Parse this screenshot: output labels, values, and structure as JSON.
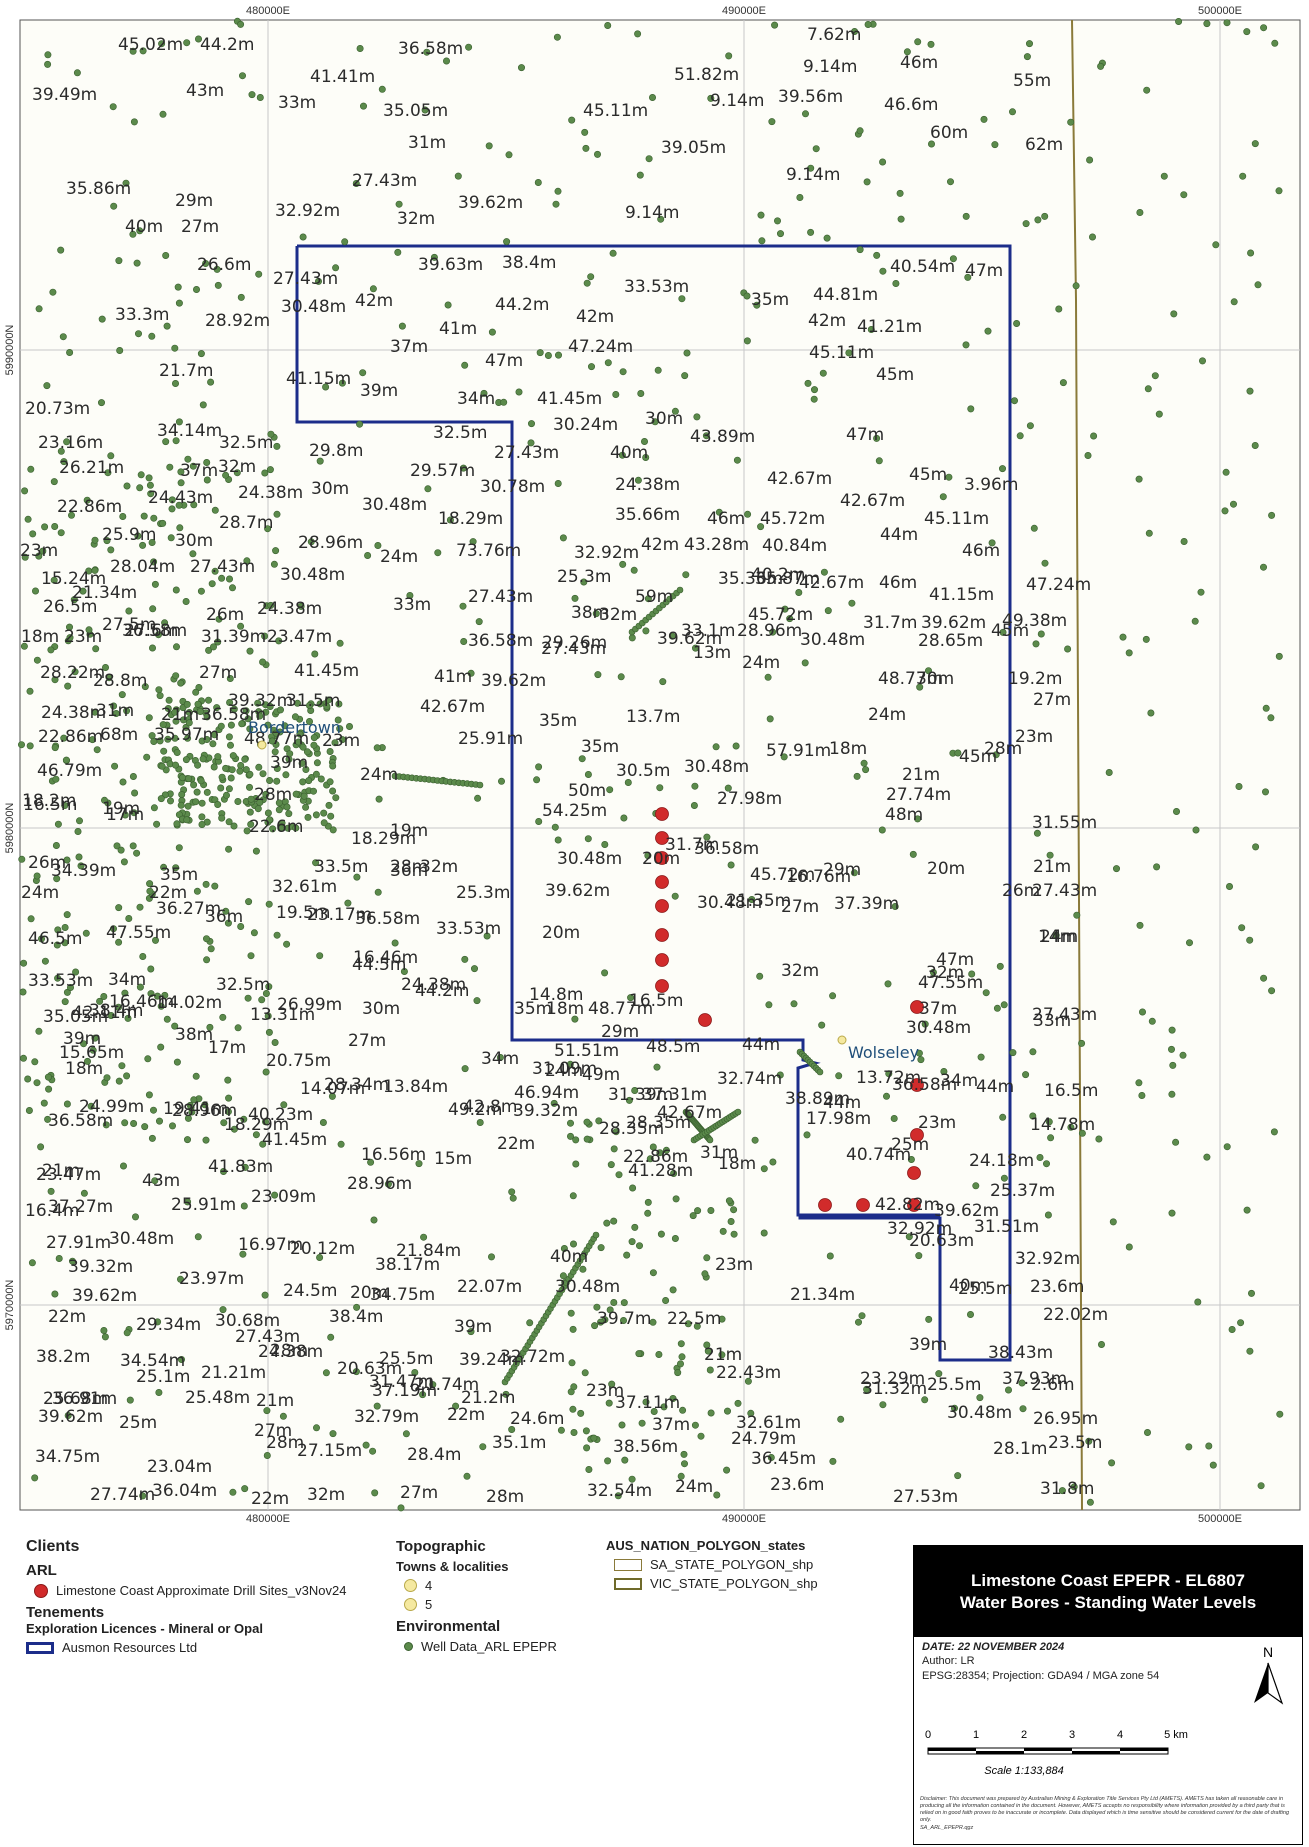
{
  "map": {
    "grid_labels": {
      "top": [
        "480000E",
        "490000E",
        "500000E"
      ],
      "bottom": [
        "480000E",
        "490000E",
        "500000E"
      ],
      "left": [
        "5990000N",
        "5980000N",
        "5970000N"
      ]
    },
    "towns": [
      {
        "name": "Bordertown"
      },
      {
        "name": "Wolseley"
      }
    ],
    "well_labels": [
      "45.02m",
      "44.2m",
      "36.58m",
      "7.62m",
      "39.49m",
      "43m",
      "41.41m",
      "51.82m",
      "9.14m",
      "46m",
      "55m",
      "33m",
      "35.05m",
      "45.11m",
      "9.14m",
      "39.56m",
      "46.6m",
      "31m",
      "39.05m",
      "60m",
      "62m",
      "35.86m",
      "27.43m",
      "9.14m",
      "29m",
      "32.92m",
      "32m",
      "39.62m",
      "9.14m",
      "40m",
      "27m",
      "26.6m",
      "39.63m",
      "38.4m",
      "40.54m",
      "47m",
      "27.43m",
      "33.53m",
      "30.48m",
      "42m",
      "44.2m",
      "35m",
      "44.81m",
      "33.3m",
      "28.92m",
      "42m",
      "42m",
      "41.21m",
      "41m",
      "47.24m",
      "37m",
      "45.11m",
      "21.7m",
      "47m",
      "45m",
      "41.15m",
      "39m",
      "34m",
      "41.45m",
      "20.73m",
      "30.24m",
      "30m",
      "43.89m",
      "23.16m",
      "34.14m",
      "32.5m",
      "32.5m",
      "27.43m",
      "47m",
      "29.8m",
      "40m",
      "26.21m",
      "37m",
      "32m",
      "29.57m",
      "45m",
      "30.78m",
      "24.38m",
      "42.67m",
      "3.96m",
      "30m",
      "24.43m",
      "24.38m",
      "42.67m",
      "22.86m",
      "30.48m",
      "18.29m",
      "35.66m",
      "46m",
      "45.72m",
      "45.11m",
      "28.7m",
      "25.9m",
      "30m",
      "28.96m",
      "73.76m",
      "32.92m",
      "42m",
      "43.28m",
      "40.84m",
      "44m",
      "46m",
      "23m",
      "28.04m",
      "24m",
      "27.43m",
      "15.24m",
      "30.48m",
      "40.2m",
      "42.67m",
      "46m",
      "47.24m",
      "21.34m",
      "25.3m",
      "41.15m",
      "26.5m",
      "26m",
      "24.38m",
      "33m",
      "27.43m",
      "38m",
      "59m",
      "45.72m",
      "49.38m",
      "32m",
      "31.7m",
      "39.62m",
      "18m",
      "23m",
      "27.5m",
      "27.6m",
      "31.39m",
      "23.47m",
      "36.58m",
      "29.26m",
      "33.1m",
      "28.96m",
      "30.48m",
      "28.65m",
      "45m",
      "36.58m",
      "27.43m",
      "39.62m",
      "13m",
      "24m",
      "28.22m",
      "28.8m",
      "27m",
      "41.45m",
      "41m",
      "39.62m",
      "48.77m",
      "30m",
      "19.2m",
      "24.38m",
      "31m",
      "39.32m",
      "21m",
      "31.5m",
      "42.67m",
      "35m",
      "13.7m",
      "24m",
      "27m",
      "23m",
      "22.86m",
      "35.97m",
      "36.58m",
      "68m",
      "48.77m",
      "25.91m",
      "35m",
      "57.91m",
      "18m",
      "28m",
      "46.79m",
      "39m",
      "23m",
      "24m",
      "50m",
      "30.5m",
      "30.48m",
      "21m",
      "45m",
      "16.5m",
      "19m",
      "28m",
      "54.25m",
      "27.98m",
      "27.74m",
      "48m",
      "31.55m",
      "18.2m",
      "17m",
      "22.6m",
      "19m",
      "18.29m",
      "28m",
      "32m",
      "31.7m",
      "36.58m",
      "29m",
      "30.48m",
      "20m",
      "20m",
      "26m",
      "34.39m",
      "35m",
      "33.5m",
      "36m",
      "45.72m",
      "16.76m",
      "21m",
      "24m",
      "22m",
      "32.61m",
      "25.3m",
      "39.62m",
      "30.48m",
      "27m",
      "27.43m",
      "36.27m",
      "36m",
      "23.17m",
      "26m",
      "21.35m",
      "37.39m",
      "46.5m",
      "36.58m",
      "33.53m",
      "32m",
      "47.55m",
      "19.5m",
      "16.46m",
      "24.38m",
      "44.2m",
      "47m",
      "20m",
      "32m",
      "24m",
      "32.5m",
      "34m",
      "44.5m",
      "14m",
      "33.53m",
      "16.46m",
      "26.99m",
      "30m",
      "35m",
      "48.77m",
      "37m",
      "27.43m",
      "38.4m",
      "14.02m",
      "18m",
      "16.5m",
      "47.55m",
      "35.05m",
      "42.11m",
      "38m",
      "13.31m",
      "14.8m",
      "29m",
      "30.48m",
      "33m",
      "48.5m",
      "51.51m",
      "24m",
      "44m",
      "39m",
      "15.65m",
      "17m",
      "27m",
      "34m",
      "31.09m",
      "49m",
      "37.31m",
      "13.72m",
      "18m",
      "20.75m",
      "28.34m",
      "46.94m",
      "31.39m",
      "34m",
      "36.58m",
      "19.41m",
      "14.07m",
      "13.84m",
      "49.2m",
      "28.35m",
      "32.74m",
      "44m",
      "36.58m",
      "44m",
      "17.98m",
      "16.5m",
      "14.78m",
      "24.99m",
      "28.96m",
      "18.29m",
      "42.8m",
      "39.32m",
      "28.35m",
      "42.67m",
      "38.89m",
      "23m",
      "23.47m",
      "21m",
      "40.23m",
      "41.45m",
      "16.56m",
      "15m",
      "22m",
      "22.86m",
      "31m",
      "40.74m",
      "25m",
      "24.18m",
      "16.4m",
      "37.27m",
      "43m",
      "41.83m",
      "25.91m",
      "23.09m",
      "28.96m",
      "41.28m",
      "18m",
      "42.82m",
      "25.37m",
      "39.62m",
      "27.91m",
      "30.48m",
      "16.97m",
      "20.12m",
      "21.84m",
      "38.17m",
      "40m",
      "23m",
      "20.63m",
      "32.92m",
      "31.51m",
      "39.32m",
      "39.62m",
      "23.97m",
      "24.5m",
      "20m",
      "22.07m",
      "30.48m",
      "21.34m",
      "32.92m",
      "40m",
      "23.6m",
      "22m",
      "29.34m",
      "30.68m",
      "38.4m",
      "34.75m",
      "39m",
      "39.7m",
      "22.5m",
      "25.5m",
      "22.02m",
      "38.2m",
      "34.54m",
      "27.43m",
      "28m",
      "24.38m",
      "25.5m",
      "32.72m",
      "39.24m",
      "21m",
      "39m",
      "38.43m",
      "25.68m",
      "25.1m",
      "21.21m",
      "20.63m",
      "31.47m",
      "21.74m",
      "23m",
      "23.29m",
      "25.5m",
      "37.93m",
      "36.91m",
      "25.48m",
      "21m",
      "37.19m",
      "21.2m",
      "22.43m",
      "31.32m",
      "2.6m",
      "39.62m",
      "25m",
      "27m",
      "32.79m",
      "22m",
      "24.6m",
      "37.11m",
      "37m",
      "32.61m",
      "30.48m",
      "26.95m",
      "34.75m",
      "23.04m",
      "28m",
      "27.15m",
      "28.4m",
      "35.1m",
      "38.56m",
      "24.79m",
      "36.45m",
      "28.1m",
      "23.5m",
      "27.74m",
      "36.04m",
      "22m",
      "32m",
      "27m",
      "28m",
      "32.54m",
      "24m",
      "23.6m",
      "27.53m",
      "31.8m",
      "35.36m",
      "35.87m"
    ]
  },
  "legend": {
    "col1": {
      "clients_heading": "Clients",
      "arl_heading": "ARL",
      "drill_sites_label": "Limestone Coast Approximate Drill Sites_v3Nov24",
      "tenements_heading": "Tenements",
      "exploration_heading": "Exploration Licences - Mineral or Opal",
      "ausmon_label": "Ausmon Resources Ltd"
    },
    "col2": {
      "topographic_heading": "Topographic",
      "towns_heading": "Towns & localities",
      "town_4_label": "4",
      "town_5_label": "5",
      "environmental_heading": "Environmental",
      "well_data_label": "Well Data_ARL EPEPR"
    },
    "col3": {
      "states_heading": "AUS_NATION_POLYGON_states",
      "sa_label": "SA_STATE_POLYGON_shp",
      "vic_label": "VIC_STATE_POLYGON_shp"
    }
  },
  "title_block": {
    "title_line1": "Limestone Coast EPEPR - EL6807",
    "title_line2": "Water Bores - Standing Water Levels",
    "date": "DATE: 22 NOVEMBER 2024",
    "author": "Author: LR",
    "projection": "EPSG:28354; Projection: GDA94 / MGA zone 54",
    "north_label": "N",
    "scale_ticks": [
      "0",
      "1",
      "2",
      "3",
      "4",
      "5 km"
    ],
    "scale_text": "Scale 1:133,884",
    "disclaimer": "Disclaimer: This document was prepared by Australian Mining & Exploration Title Services Pty Ltd (AMETS). AMETS has taken all reasonable care in producing all the information contained in the document. However, AMETS accepts no responsibility where information provided by a third party that is relied on in good faith proves to be inaccurate or incomplete. Data displayed which is time sensitive should be considered current for the date of drafting only.",
    "file_path": "SA_ARL_EPEPR.qgz"
  },
  "colors": {
    "well_dot": "#5b8a4b",
    "drill_site": "#d12b2b",
    "tenement_outline": "#1c2d8a",
    "state_boundary": "#8a7a3a",
    "map_background": "#fdfdf8",
    "title_bar": "#000000"
  },
  "icons": {
    "north_arrow": "north-arrow-icon",
    "well": "well-dot-icon",
    "drill": "drill-site-icon"
  }
}
